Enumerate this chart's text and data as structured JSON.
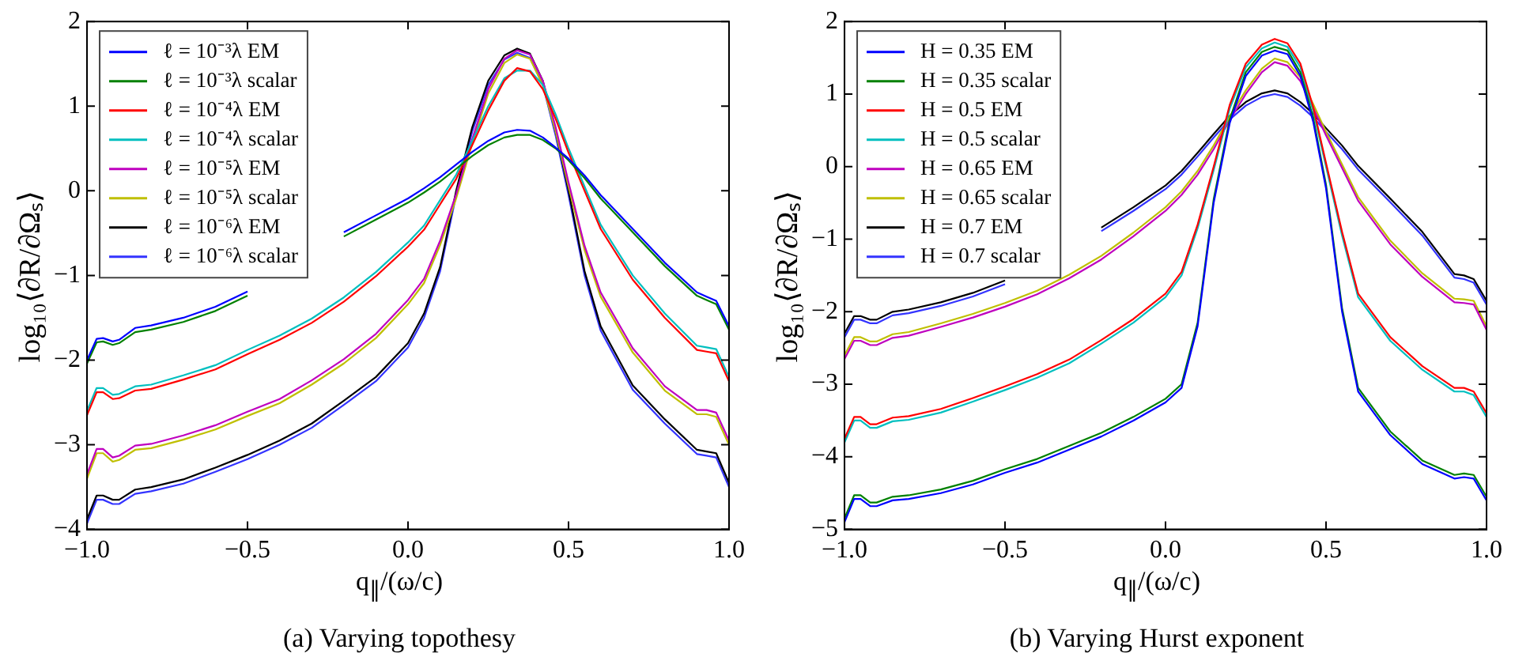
{
  "chart_data": [
    {
      "type": "line",
      "title": "(a) Varying topothesy",
      "xlabel": "q$_{∥}$/(ω/c)",
      "ylabel": "log₁₀⟨∂R/∂Ωₛ⟩",
      "legend": "top left",
      "grid": false,
      "marker": "none",
      "line_style": "solid",
      "xlim": [
        -1,
        1
      ],
      "xticks": [
        {
          "value": -1,
          "label": "−1.0"
        },
        {
          "value": -0.5,
          "label": "−0.5"
        },
        {
          "value": 0,
          "label": "0.0"
        },
        {
          "value": 0.5,
          "label": "0.5"
        },
        {
          "value": 1,
          "label": "1.0"
        }
      ],
      "ylim": [
        -4,
        2
      ],
      "yticks": [
        -4,
        -3,
        -2,
        -1,
        0,
        1,
        2
      ],
      "x": [
        -1,
        -0.97,
        -0.95,
        -0.92,
        -0.9,
        -0.85,
        -0.8,
        -0.7,
        -0.6,
        -0.5,
        -0.4,
        -0.3,
        -0.2,
        -0.1,
        0,
        0.05,
        0.1,
        0.15,
        0.2,
        0.25,
        0.3,
        0.34,
        0.38,
        0.42,
        0.46,
        0.5,
        0.55,
        0.6,
        0.7,
        0.8,
        0.9,
        0.93,
        0.96,
        1
      ],
      "series": [
        {
          "name": "ℓ = 10⁻³λ EM",
          "color": "#0000ff",
          "values": [
            -2.0,
            -1.75,
            -1.74,
            -1.78,
            -1.76,
            -1.62,
            -1.59,
            -1.5,
            -1.37,
            -1.19,
            null,
            null,
            -0.49,
            -0.29,
            -0.09,
            0.03,
            0.16,
            0.31,
            0.46,
            0.59,
            0.69,
            0.72,
            0.71,
            0.63,
            0.51,
            0.38,
            0.18,
            -0.05,
            -0.45,
            -0.85,
            -1.2,
            -1.25,
            -1.3,
            -1.6
          ]
        },
        {
          "name": "ℓ = 10⁻³λ scalar",
          "color": "#008000",
          "values": [
            -2.04,
            -1.79,
            -1.78,
            -1.82,
            -1.8,
            -1.67,
            -1.64,
            -1.55,
            -1.42,
            -1.24,
            null,
            null,
            -0.54,
            -0.34,
            -0.14,
            -0.02,
            0.11,
            0.26,
            0.41,
            0.54,
            0.63,
            0.66,
            0.66,
            0.6,
            0.5,
            0.36,
            0.15,
            -0.09,
            -0.49,
            -0.89,
            -1.24,
            -1.29,
            -1.34,
            -1.64
          ]
        },
        {
          "name": "ℓ = 10⁻⁴λ EM",
          "color": "#ff0000",
          "values": [
            -2.65,
            -2.38,
            -2.38,
            -2.46,
            -2.45,
            -2.36,
            -2.34,
            -2.23,
            -2.11,
            -1.93,
            -1.76,
            -1.56,
            -1.31,
            -1.01,
            -0.66,
            -0.46,
            -0.16,
            0.14,
            0.54,
            0.95,
            1.3,
            1.45,
            1.41,
            1.2,
            0.85,
            0.45,
            0.0,
            -0.45,
            -1.05,
            -1.5,
            -1.88,
            -1.9,
            -1.92,
            -2.25
          ]
        },
        {
          "name": "ℓ = 10⁻⁴λ scalar",
          "color": "#00bfbf",
          "values": [
            -2.6,
            -2.33,
            -2.33,
            -2.41,
            -2.4,
            -2.31,
            -2.29,
            -2.18,
            -2.06,
            -1.88,
            -1.71,
            -1.51,
            -1.26,
            -0.96,
            -0.61,
            -0.41,
            -0.11,
            0.19,
            0.59,
            1.0,
            1.33,
            1.42,
            1.42,
            1.25,
            0.9,
            0.5,
            0.05,
            -0.4,
            -1.0,
            -1.45,
            -1.83,
            -1.85,
            -1.87,
            -2.2
          ]
        },
        {
          "name": "ℓ = 10⁻⁵λ EM",
          "color": "#bf00bf",
          "values": [
            -3.35,
            -3.05,
            -3.05,
            -3.15,
            -3.13,
            -3.01,
            -2.99,
            -2.89,
            -2.77,
            -2.61,
            -2.46,
            -2.24,
            -1.99,
            -1.69,
            -1.29,
            -1.04,
            -0.59,
            -0.04,
            0.61,
            1.2,
            1.56,
            1.66,
            1.61,
            1.3,
            0.75,
            0.1,
            -0.65,
            -1.2,
            -1.86,
            -2.31,
            -2.59,
            -2.59,
            -2.62,
            -2.95
          ]
        },
        {
          "name": "ℓ = 10⁻⁵λ scalar",
          "color": "#bfbf00",
          "values": [
            -3.4,
            -3.1,
            -3.1,
            -3.2,
            -3.18,
            -3.06,
            -3.04,
            -2.94,
            -2.82,
            -2.66,
            -2.51,
            -2.29,
            -2.04,
            -1.74,
            -1.34,
            -1.09,
            -0.64,
            -0.09,
            0.56,
            1.15,
            1.51,
            1.61,
            1.56,
            1.25,
            0.7,
            0.05,
            -0.7,
            -1.25,
            -1.91,
            -2.36,
            -2.64,
            -2.64,
            -2.67,
            -3.0
          ]
        },
        {
          "name": "ℓ = 10⁻⁶λ EM",
          "color": "#000000",
          "values": [
            -3.88,
            -3.6,
            -3.6,
            -3.65,
            -3.65,
            -3.53,
            -3.5,
            -3.41,
            -3.27,
            -3.12,
            -2.95,
            -2.75,
            -2.48,
            -2.2,
            -1.8,
            -1.45,
            -0.9,
            0.0,
            0.75,
            1.3,
            1.6,
            1.68,
            1.62,
            1.3,
            0.7,
            0.0,
            -0.95,
            -1.6,
            -2.3,
            -2.7,
            -3.06,
            -3.08,
            -3.1,
            -3.45
          ]
        },
        {
          "name": "ℓ = 10⁻⁶λ scalar",
          "color": "#3333ff",
          "values": [
            -3.93,
            -3.65,
            -3.65,
            -3.7,
            -3.7,
            -3.58,
            -3.55,
            -3.46,
            -3.32,
            -3.17,
            -3.0,
            -2.8,
            -2.53,
            -2.25,
            -1.85,
            -1.5,
            -0.95,
            -0.05,
            0.7,
            1.25,
            1.55,
            1.63,
            1.57,
            1.25,
            0.65,
            -0.05,
            -1.0,
            -1.65,
            -2.35,
            -2.75,
            -3.11,
            -3.13,
            -3.15,
            -3.5
          ]
        }
      ]
    },
    {
      "type": "line",
      "title": "(b) Varying Hurst exponent",
      "xlabel": "q$_{∥}$/(ω/c)",
      "ylabel": "log₁₀⟨∂R/∂Ωₛ⟩",
      "legend": "top left",
      "grid": false,
      "marker": "none",
      "line_style": "solid",
      "xlim": [
        -1,
        1
      ],
      "xticks": [
        {
          "value": -1,
          "label": "−1.0"
        },
        {
          "value": -0.5,
          "label": "−0.5"
        },
        {
          "value": 0,
          "label": "0.0"
        },
        {
          "value": 0.5,
          "label": "0.5"
        },
        {
          "value": 1,
          "label": "1.0"
        }
      ],
      "ylim": [
        -5,
        2
      ],
      "yticks": [
        -5,
        -4,
        -3,
        -2,
        -1,
        0,
        1,
        2
      ],
      "x": [
        -1,
        -0.97,
        -0.95,
        -0.92,
        -0.9,
        -0.85,
        -0.8,
        -0.7,
        -0.6,
        -0.5,
        -0.4,
        -0.3,
        -0.2,
        -0.1,
        0,
        0.05,
        0.1,
        0.15,
        0.2,
        0.25,
        0.3,
        0.34,
        0.38,
        0.42,
        0.46,
        0.5,
        0.55,
        0.6,
        0.7,
        0.8,
        0.9,
        0.93,
        0.96,
        1
      ],
      "series": [
        {
          "name": "H = 0.35 EM",
          "color": "#0000ff",
          "values": [
            -4.9,
            -4.58,
            -4.58,
            -4.68,
            -4.68,
            -4.6,
            -4.58,
            -4.5,
            -4.38,
            -4.22,
            -4.08,
            -3.9,
            -3.72,
            -3.5,
            -3.25,
            -3.05,
            -2.2,
            -0.5,
            0.6,
            1.25,
            1.53,
            1.6,
            1.55,
            1.25,
            0.62,
            -0.3,
            -2.0,
            -3.1,
            -3.7,
            -4.1,
            -4.3,
            -4.28,
            -4.3,
            -4.6
          ]
        },
        {
          "name": "H = 0.35 scalar",
          "color": "#008000",
          "values": [
            -4.85,
            -4.53,
            -4.53,
            -4.63,
            -4.63,
            -4.55,
            -4.53,
            -4.45,
            -4.33,
            -4.17,
            -4.03,
            -3.85,
            -3.67,
            -3.45,
            -3.2,
            -3.0,
            -2.15,
            -0.45,
            0.65,
            1.3,
            1.58,
            1.65,
            1.6,
            1.3,
            0.67,
            -0.25,
            -1.95,
            -3.05,
            -3.65,
            -4.05,
            -4.25,
            -4.23,
            -4.25,
            -4.55
          ]
        },
        {
          "name": "H = 0.5 EM",
          "color": "#ff0000",
          "values": [
            -3.75,
            -3.45,
            -3.45,
            -3.55,
            -3.55,
            -3.46,
            -3.44,
            -3.34,
            -3.19,
            -3.03,
            -2.86,
            -2.66,
            -2.39,
            -2.1,
            -1.75,
            -1.45,
            -0.8,
            0.0,
            0.85,
            1.42,
            1.68,
            1.76,
            1.7,
            1.42,
            0.82,
            0.05,
            -0.9,
            -1.75,
            -2.35,
            -2.75,
            -3.05,
            -3.05,
            -3.1,
            -3.4
          ]
        },
        {
          "name": "H = 0.5 scalar",
          "color": "#00bfbf",
          "values": [
            -3.8,
            -3.5,
            -3.5,
            -3.6,
            -3.6,
            -3.51,
            -3.49,
            -3.39,
            -3.24,
            -3.08,
            -2.91,
            -2.71,
            -2.44,
            -2.15,
            -1.8,
            -1.5,
            -0.85,
            -0.05,
            0.8,
            1.37,
            1.63,
            1.71,
            1.65,
            1.37,
            0.77,
            0.0,
            -0.95,
            -1.8,
            -2.4,
            -2.8,
            -3.1,
            -3.1,
            -3.15,
            -3.45
          ]
        },
        {
          "name": "H = 0.65 EM",
          "color": "#bf00bf",
          "values": [
            -2.65,
            -2.4,
            -2.4,
            -2.46,
            -2.46,
            -2.36,
            -2.33,
            -2.21,
            -2.08,
            -1.93,
            -1.76,
            -1.54,
            -1.28,
            -0.96,
            -0.61,
            -0.39,
            -0.11,
            0.24,
            0.64,
            1.0,
            1.3,
            1.44,
            1.39,
            1.18,
            0.81,
            0.43,
            -0.02,
            -0.47,
            -1.07,
            -1.52,
            -1.87,
            -1.88,
            -1.9,
            -2.25
          ]
        },
        {
          "name": "H = 0.65 scalar",
          "color": "#bfbf00",
          "values": [
            -2.6,
            -2.35,
            -2.35,
            -2.41,
            -2.41,
            -2.31,
            -2.28,
            -2.16,
            -2.03,
            -1.88,
            -1.71,
            -1.49,
            -1.23,
            -0.91,
            -0.56,
            -0.34,
            -0.06,
            0.29,
            0.69,
            1.05,
            1.35,
            1.49,
            1.44,
            1.23,
            0.86,
            0.48,
            0.03,
            -0.42,
            -1.02,
            -1.47,
            -1.82,
            -1.83,
            -1.85,
            -2.2
          ]
        },
        {
          "name": "H = 0.7 EM",
          "color": "#000000",
          "values": [
            -2.3,
            -2.06,
            -2.06,
            -2.11,
            -2.11,
            -2.0,
            -1.97,
            -1.87,
            -1.74,
            -1.57,
            null,
            null,
            -0.84,
            -0.56,
            -0.26,
            -0.06,
            0.19,
            0.45,
            0.7,
            0.89,
            1.01,
            1.05,
            1.01,
            0.89,
            0.73,
            0.53,
            0.29,
            0.01,
            -0.44,
            -0.9,
            -1.48,
            -1.5,
            -1.55,
            -1.85
          ]
        },
        {
          "name": "H = 0.7 scalar",
          "color": "#3333ff",
          "values": [
            -2.35,
            -2.11,
            -2.11,
            -2.16,
            -2.16,
            -2.05,
            -2.02,
            -1.92,
            -1.79,
            -1.62,
            null,
            null,
            -0.89,
            -0.61,
            -0.31,
            -0.11,
            0.14,
            0.4,
            0.65,
            0.84,
            0.96,
            1.0,
            0.96,
            0.84,
            0.68,
            0.48,
            0.24,
            -0.04,
            -0.49,
            -0.95,
            -1.53,
            -1.55,
            -1.6,
            -1.9
          ]
        }
      ]
    }
  ]
}
